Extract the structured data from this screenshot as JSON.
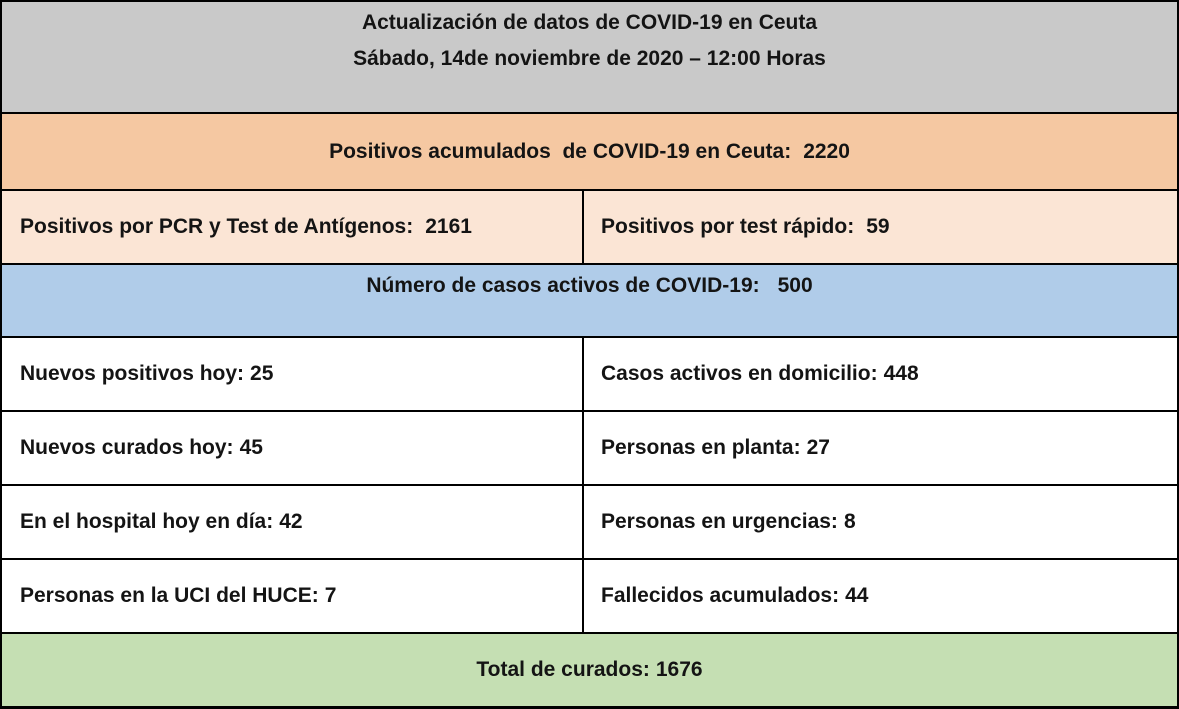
{
  "header": {
    "line1": "Actualización de datos de COVID-19 en Ceuta",
    "line2": "Sábado, 14de noviembre de 2020 – 12:00 Horas"
  },
  "accumulated": {
    "label": "Positivos acumulados  de COVID-19 en Ceuta:",
    "value": "2220"
  },
  "breakdown": {
    "pcr_antigen": {
      "label": "Positivos por PCR y Test de Antígenos:",
      "value": "2161"
    },
    "rapid_test": {
      "label": "Positivos por test rápido:",
      "value": "59"
    }
  },
  "active_cases": {
    "label": "Número de casos activos de COVID-19:",
    "value": "500"
  },
  "stats": {
    "new_positives_today": {
      "label": "Nuevos positivos hoy:",
      "value": "25"
    },
    "active_at_home": {
      "label": "Casos activos en domicilio:",
      "value": "448"
    },
    "new_recovered_today": {
      "label": "Nuevos curados hoy:",
      "value": "45"
    },
    "in_ward": {
      "label": "Personas en planta:",
      "value": "27"
    },
    "in_hospital_today": {
      "label": "En el hospital hoy en día:",
      "value": "42"
    },
    "in_er": {
      "label": "Personas en urgencias:",
      "value": "8"
    },
    "in_icu": {
      "label": "Personas en la UCI del HUCE:",
      "value": "7"
    },
    "accumulated_deaths": {
      "label": "Fallecidos acumulados:",
      "value": "44"
    }
  },
  "total_recovered": {
    "label": "Total de curados:",
    "value": "1676"
  },
  "colors": {
    "header_gray": "#C9C9C9",
    "orange": "#F5C8A2",
    "peach": "#FBE5D5",
    "blue": "#B0CCE9",
    "green": "#C5DFB3",
    "border": "#000000",
    "text": "#141414"
  }
}
